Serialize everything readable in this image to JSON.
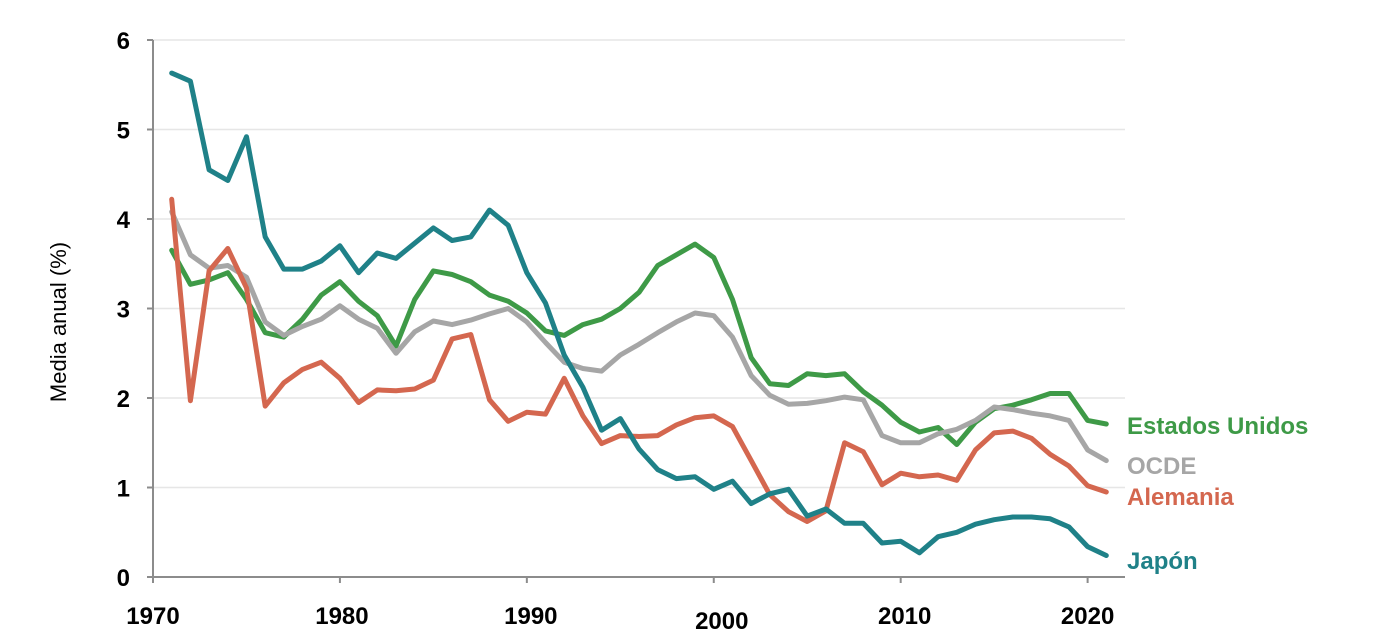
{
  "chart_data": {
    "type": "line",
    "title": "",
    "xlabel": "",
    "ylabel": "Media anual (%)",
    "xlim": [
      1970,
      2022
    ],
    "ylim": [
      0,
      6
    ],
    "x_ticks": [
      "1970",
      "1980",
      "1990",
      "2000",
      "2010",
      "2020"
    ],
    "y_ticks": [
      "0",
      "1",
      "2",
      "3",
      "4",
      "5",
      "6"
    ],
    "grid": "horizontal",
    "legend_placement": "right, at line ends",
    "x": [
      1971,
      1972,
      1973,
      1974,
      1975,
      1976,
      1977,
      1978,
      1979,
      1980,
      1981,
      1982,
      1983,
      1984,
      1985,
      1986,
      1987,
      1988,
      1989,
      1990,
      1991,
      1992,
      1993,
      1994,
      1995,
      1996,
      1997,
      1998,
      1999,
      2000,
      2001,
      2002,
      2003,
      2004,
      2005,
      2006,
      2007,
      2008,
      2009,
      2010,
      2011,
      2012,
      2013,
      2014,
      2015,
      2016,
      2017,
      2018,
      2019,
      2020,
      2021
    ],
    "series": [
      {
        "name": "Estados Unidos",
        "color": "#3e9a47",
        "values": [
          3.65,
          3.27,
          3.32,
          3.4,
          3.1,
          2.73,
          2.68,
          2.88,
          3.15,
          3.3,
          3.08,
          2.92,
          2.58,
          3.1,
          3.42,
          3.38,
          3.3,
          3.15,
          3.08,
          2.95,
          2.75,
          2.7,
          2.82,
          2.88,
          3.0,
          3.18,
          3.48,
          3.6,
          3.72,
          3.57,
          3.1,
          2.45,
          2.16,
          2.14,
          2.27,
          2.25,
          2.27,
          2.07,
          1.92,
          1.73,
          1.62,
          1.67,
          1.48,
          1.73,
          1.88,
          1.92,
          1.98,
          2.05,
          2.05,
          1.75,
          1.71
        ]
      },
      {
        "name": "OCDE",
        "color": "#a6a6a6",
        "values": [
          4.08,
          3.6,
          3.45,
          3.48,
          3.35,
          2.85,
          2.7,
          2.8,
          2.88,
          3.03,
          2.88,
          2.78,
          2.5,
          2.74,
          2.86,
          2.82,
          2.87,
          2.94,
          3.0,
          2.85,
          2.62,
          2.4,
          2.33,
          2.3,
          2.48,
          2.6,
          2.73,
          2.85,
          2.95,
          2.92,
          2.68,
          2.25,
          2.03,
          1.93,
          1.94,
          1.97,
          2.01,
          1.98,
          1.58,
          1.5,
          1.5,
          1.6,
          1.65,
          1.75,
          1.9,
          1.87,
          1.83,
          1.8,
          1.75,
          1.42,
          1.3
        ]
      },
      {
        "name": "Alemania",
        "color": "#d4674f",
        "values": [
          4.22,
          1.97,
          3.42,
          3.67,
          3.23,
          1.91,
          2.17,
          2.32,
          2.4,
          2.22,
          1.95,
          2.09,
          2.08,
          2.1,
          2.2,
          2.66,
          2.71,
          1.98,
          1.74,
          1.84,
          1.82,
          2.22,
          1.8,
          1.49,
          1.58,
          1.57,
          1.58,
          1.7,
          1.78,
          1.8,
          1.68,
          1.3,
          0.92,
          0.73,
          0.62,
          0.74,
          1.5,
          1.4,
          1.03,
          1.16,
          1.12,
          1.14,
          1.08,
          1.42,
          1.61,
          1.63,
          1.55,
          1.37,
          1.24,
          1.02,
          0.95
        ]
      },
      {
        "name": "Japón",
        "color": "#1f8188",
        "values": [
          5.63,
          5.54,
          4.55,
          4.43,
          4.92,
          3.8,
          3.44,
          3.44,
          3.53,
          3.7,
          3.4,
          3.62,
          3.56,
          3.73,
          3.9,
          3.76,
          3.8,
          4.1,
          3.93,
          3.4,
          3.06,
          2.48,
          2.12,
          1.64,
          1.77,
          1.43,
          1.2,
          1.1,
          1.12,
          0.98,
          1.07,
          0.82,
          0.93,
          0.98,
          0.68,
          0.76,
          0.6,
          0.6,
          0.38,
          0.4,
          0.27,
          0.45,
          0.5,
          0.59,
          0.64,
          0.67,
          0.67,
          0.65,
          0.56,
          0.34,
          0.24
        ]
      }
    ]
  }
}
